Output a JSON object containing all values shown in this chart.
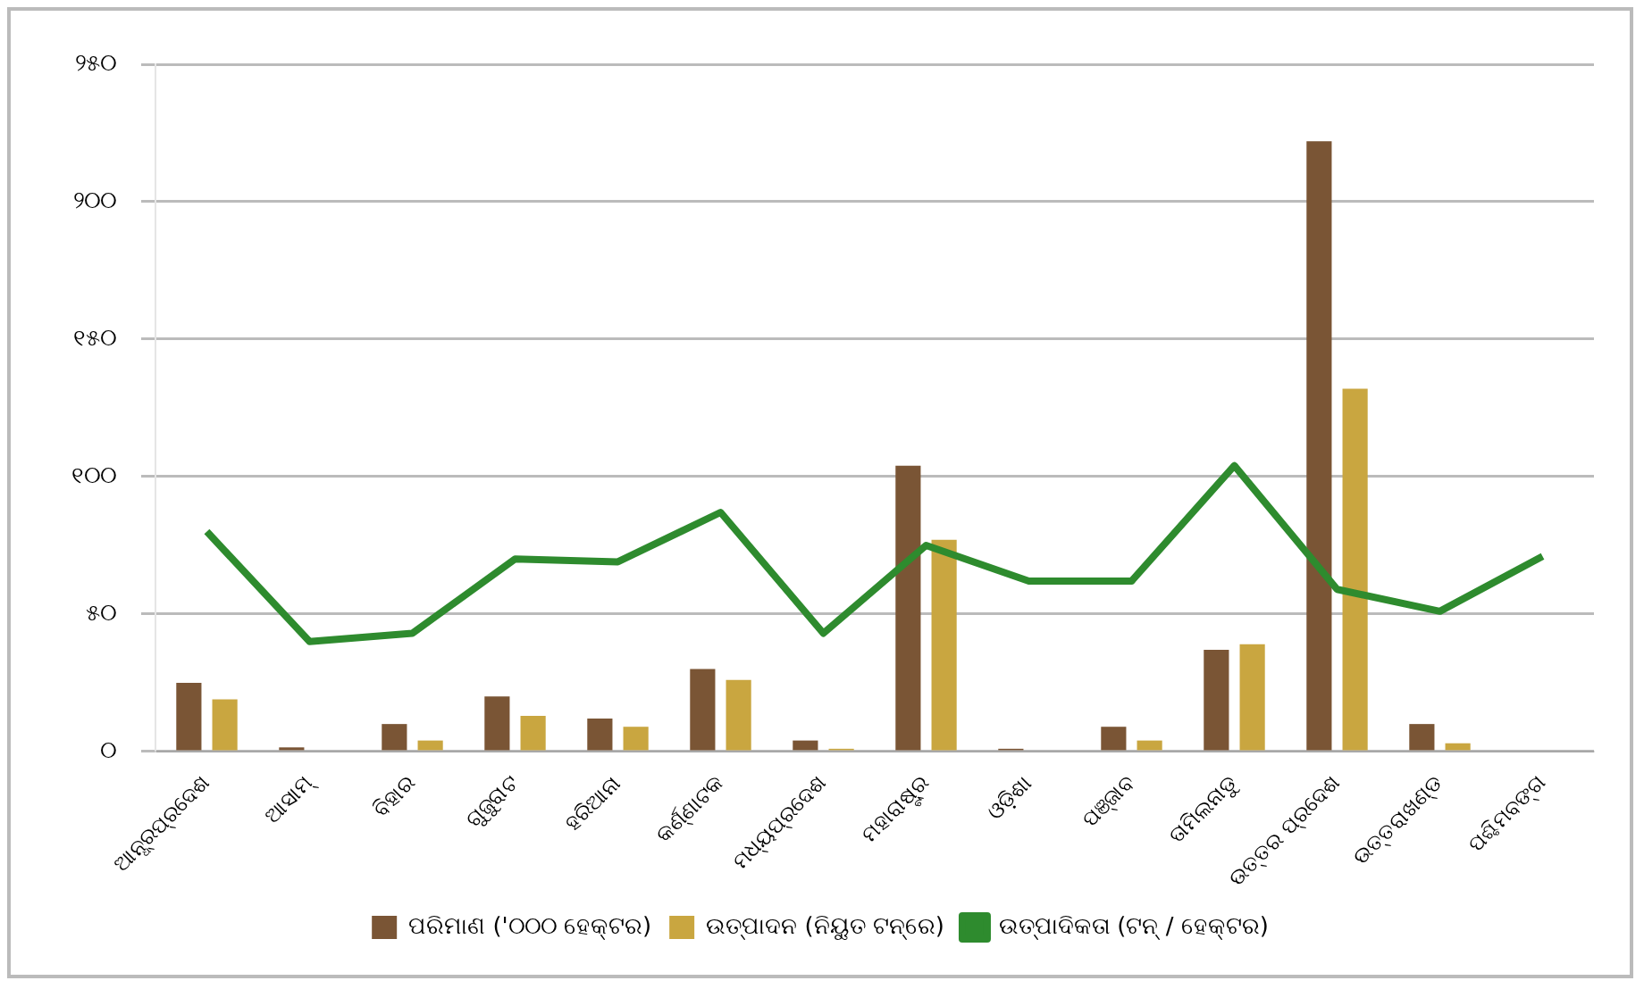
{
  "chart_data": {
    "type": "bar",
    "categories": [
      "ଆନ୍ଧ୍ରପ୍ରଦେଶ",
      "ଆସାମ୍",
      "ବିହାର",
      "ଗୁଜୁରାଟ",
      "ହରିଆନା",
      "କର୍ଣ୍ଣାଟକ",
      "ମଧ୍ୟପ୍ରଦେଶ",
      "ମହାରାଷ୍ଟ୍ର",
      "ଓଡ଼ିଶା",
      "ପଞ୍ଜାବ",
      "ତାମିଲନାଡୁ",
      "ଉତ୍ତର ପ୍ରଦେଶ",
      "ଉତ୍ତରାଖଣ୍ଡ",
      "ପଶ୍ଚିମବଙ୍ଗ"
    ],
    "series": [
      {
        "name": "ପରିମାଣ ('୦୦୦ ହେକ୍ଟର)",
        "color": "#7a5535",
        "values": [
          25,
          1.5,
          10,
          20,
          12,
          30,
          4,
          104,
          1,
          9,
          37,
          222,
          10,
          null
        ]
      },
      {
        "name": "ଉତ୍ପାଦନ (ନିୟୁତ ଟନ୍‌ରେ)",
        "color": "#c9a640",
        "values": [
          19,
          null,
          4,
          13,
          9,
          26,
          1,
          77,
          null,
          4,
          39,
          132,
          3,
          null
        ]
      },
      {
        "name": "ଉତ୍ପାଦିକତା (ଟନ୍ / ହେକ୍ଟର)",
        "type": "line",
        "color": "#2e8b2e",
        "values": [
          80,
          40,
          43,
          70,
          69,
          87,
          43,
          75,
          62,
          62,
          104,
          59,
          51,
          71
        ]
      }
    ],
    "ylim": [
      0,
      250
    ],
    "yticks": [
      {
        "value": 0,
        "label": "୦"
      },
      {
        "value": 50,
        "label": "୫୦"
      },
      {
        "value": 100,
        "label": "୧୦୦"
      },
      {
        "value": 150,
        "label": "୧୫୦"
      },
      {
        "value": 200,
        "label": "୨୦୦"
      },
      {
        "value": 250,
        "label": "୨୫୦"
      }
    ],
    "grid": "y",
    "legend": "bottom",
    "marker": "none",
    "line_style": "solid"
  }
}
